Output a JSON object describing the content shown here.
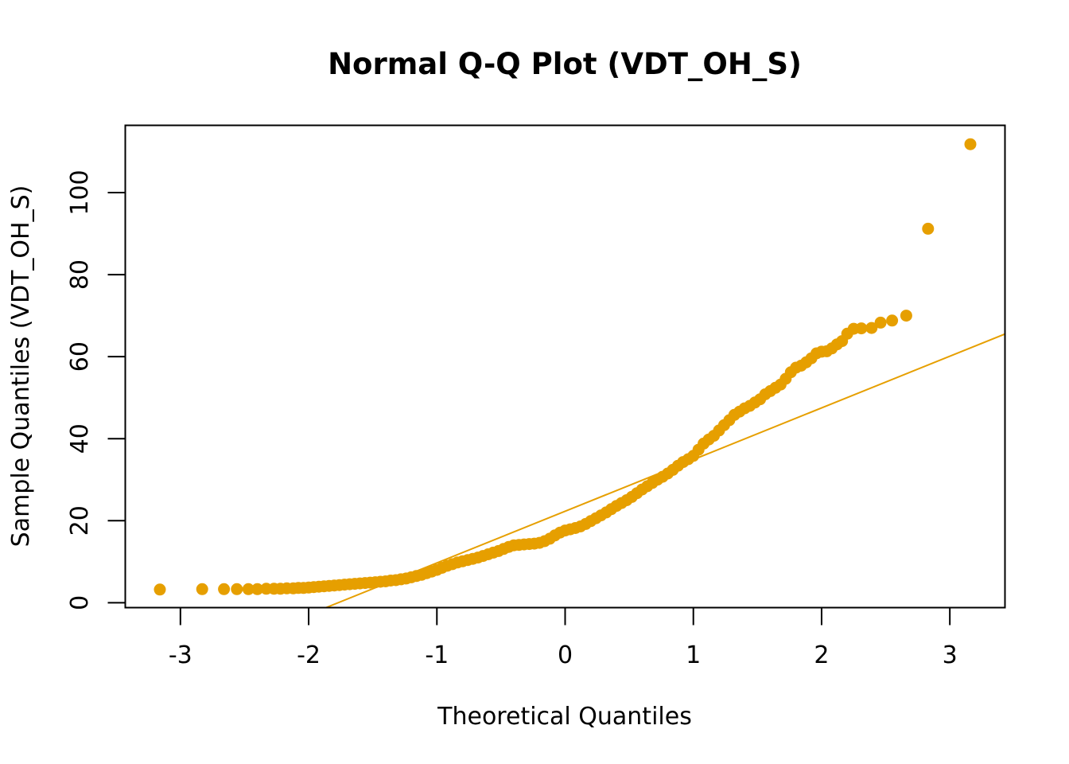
{
  "chart_data": {
    "type": "scatter",
    "title": "Normal Q-Q Plot (VDT_OH_S)",
    "xlabel": "Theoretical Quantiles",
    "ylabel": "Sample Quantiles (VDT_OH_S)",
    "xlim": [
      -3.43,
      3.43
    ],
    "ylim": [
      -1.2,
      116.4
    ],
    "x_ticks": [
      -3,
      -2,
      -1,
      0,
      1,
      2,
      3
    ],
    "y_ticks": [
      0,
      20,
      40,
      60,
      80,
      100
    ],
    "grid": false,
    "color": "#E69F00",
    "reference_line": {
      "slope": 12.6,
      "intercept": 22.3
    },
    "series": [
      {
        "points": [
          [
            -3.16,
            3.2
          ],
          [
            -2.83,
            3.3
          ],
          [
            -2.66,
            3.3
          ],
          [
            -2.56,
            3.3
          ],
          [
            -2.47,
            3.3
          ],
          [
            -2.4,
            3.3
          ],
          [
            -2.33,
            3.4
          ],
          [
            -2.27,
            3.4
          ],
          [
            -2.22,
            3.4
          ],
          [
            -2.17,
            3.5
          ],
          [
            -2.12,
            3.5
          ],
          [
            -2.08,
            3.6
          ],
          [
            -2.04,
            3.6
          ],
          [
            -2.0,
            3.7
          ],
          [
            -1.96,
            3.8
          ],
          [
            -1.92,
            3.9
          ],
          [
            -1.88,
            4.0
          ],
          [
            -1.84,
            4.1
          ],
          [
            -1.8,
            4.2
          ],
          [
            -1.76,
            4.3
          ],
          [
            -1.72,
            4.4
          ],
          [
            -1.68,
            4.5
          ],
          [
            -1.64,
            4.6
          ],
          [
            -1.6,
            4.7
          ],
          [
            -1.56,
            4.8
          ],
          [
            -1.52,
            4.9
          ],
          [
            -1.48,
            5.0
          ],
          [
            -1.44,
            5.1
          ],
          [
            -1.4,
            5.2
          ],
          [
            -1.36,
            5.4
          ],
          [
            -1.32,
            5.5
          ],
          [
            -1.28,
            5.7
          ],
          [
            -1.24,
            5.9
          ],
          [
            -1.2,
            6.2
          ],
          [
            -1.16,
            6.5
          ],
          [
            -1.12,
            6.8
          ],
          [
            -1.08,
            7.2
          ],
          [
            -1.04,
            7.6
          ],
          [
            -1.0,
            8.0
          ],
          [
            -0.96,
            8.5
          ],
          [
            -0.92,
            9.0
          ],
          [
            -0.88,
            9.4
          ],
          [
            -0.84,
            9.8
          ],
          [
            -0.8,
            10.1
          ],
          [
            -0.76,
            10.4
          ],
          [
            -0.72,
            10.7
          ],
          [
            -0.68,
            11.0
          ],
          [
            -0.64,
            11.4
          ],
          [
            -0.6,
            11.8
          ],
          [
            -0.56,
            12.2
          ],
          [
            -0.52,
            12.6
          ],
          [
            -0.48,
            13.1
          ],
          [
            -0.44,
            13.6
          ],
          [
            -0.4,
            14.0
          ],
          [
            -0.36,
            14.1
          ],
          [
            -0.32,
            14.2
          ],
          [
            -0.28,
            14.3
          ],
          [
            -0.24,
            14.4
          ],
          [
            -0.2,
            14.6
          ],
          [
            -0.16,
            15.0
          ],
          [
            -0.12,
            15.6
          ],
          [
            -0.08,
            16.4
          ],
          [
            -0.04,
            17.1
          ],
          [
            0.0,
            17.6
          ],
          [
            0.04,
            17.9
          ],
          [
            0.08,
            18.2
          ],
          [
            0.12,
            18.6
          ],
          [
            0.16,
            19.2
          ],
          [
            0.2,
            19.9
          ],
          [
            0.24,
            20.6
          ],
          [
            0.28,
            21.3
          ],
          [
            0.32,
            22.0
          ],
          [
            0.36,
            22.8
          ],
          [
            0.4,
            23.6
          ],
          [
            0.44,
            24.3
          ],
          [
            0.48,
            25.0
          ],
          [
            0.52,
            25.8
          ],
          [
            0.56,
            26.7
          ],
          [
            0.6,
            27.6
          ],
          [
            0.64,
            28.4
          ],
          [
            0.68,
            29.2
          ],
          [
            0.72,
            30.0
          ],
          [
            0.76,
            30.7
          ],
          [
            0.8,
            31.5
          ],
          [
            0.84,
            32.4
          ],
          [
            0.88,
            33.4
          ],
          [
            0.92,
            34.3
          ],
          [
            0.96,
            35.0
          ],
          [
            1.0,
            35.8
          ],
          [
            1.04,
            37.3
          ],
          [
            1.08,
            38.8
          ],
          [
            1.12,
            39.8
          ],
          [
            1.16,
            40.7
          ],
          [
            1.2,
            42.0
          ],
          [
            1.24,
            43.3
          ],
          [
            1.28,
            44.5
          ],
          [
            1.32,
            45.8
          ],
          [
            1.36,
            46.6
          ],
          [
            1.4,
            47.4
          ],
          [
            1.44,
            48.0
          ],
          [
            1.48,
            48.8
          ],
          [
            1.52,
            49.6
          ],
          [
            1.56,
            50.8
          ],
          [
            1.6,
            51.6
          ],
          [
            1.64,
            52.4
          ],
          [
            1.68,
            53.2
          ],
          [
            1.72,
            54.6
          ],
          [
            1.76,
            56.2
          ],
          [
            1.8,
            57.3
          ],
          [
            1.84,
            57.8
          ],
          [
            1.88,
            58.6
          ],
          [
            1.92,
            59.6
          ],
          [
            1.96,
            60.8
          ],
          [
            2.0,
            61.2
          ],
          [
            2.04,
            61.3
          ],
          [
            2.08,
            62.0
          ],
          [
            2.12,
            63.0
          ],
          [
            2.16,
            63.8
          ],
          [
            2.2,
            65.6
          ],
          [
            2.25,
            66.8
          ],
          [
            2.31,
            66.9
          ],
          [
            2.39,
            67.0
          ],
          [
            2.46,
            68.3
          ],
          [
            2.55,
            68.8
          ],
          [
            2.66,
            70.0
          ],
          [
            2.83,
            91.2
          ],
          [
            3.16,
            111.8
          ]
        ]
      }
    ]
  }
}
